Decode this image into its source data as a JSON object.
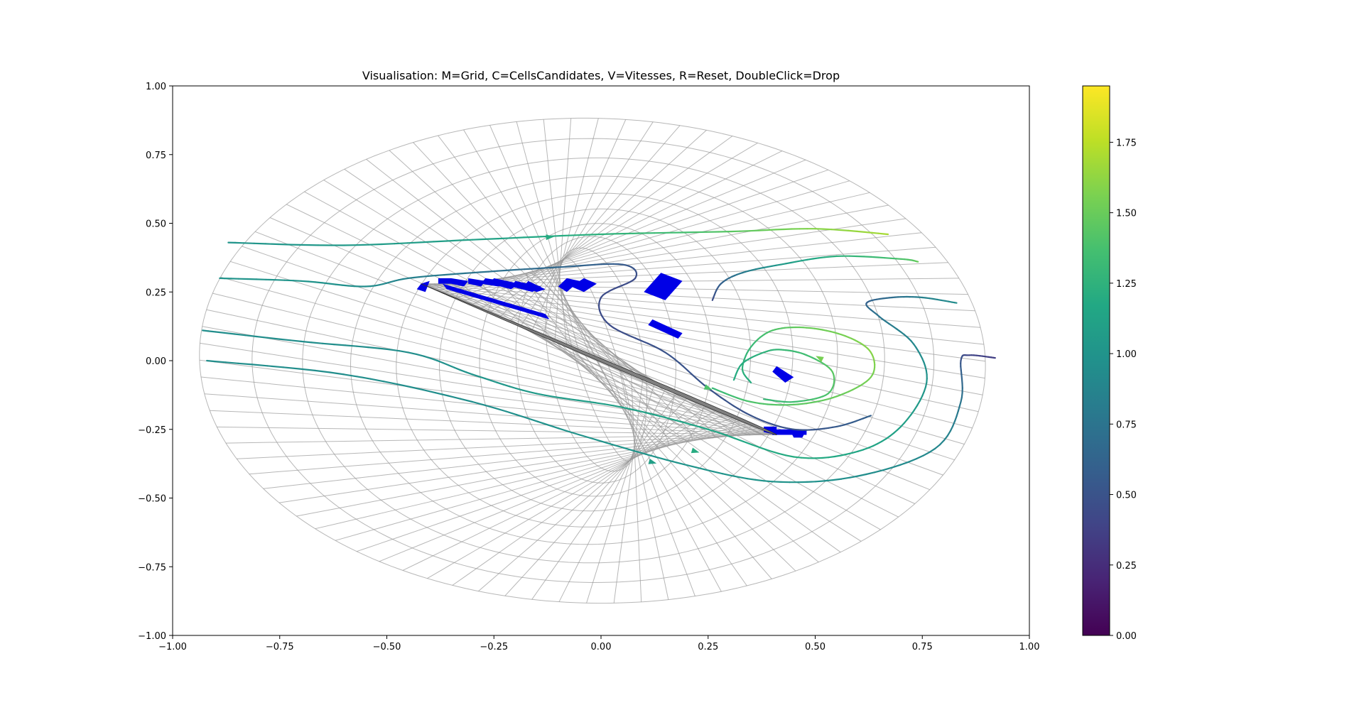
{
  "chart_data": {
    "type": "line",
    "title": "Visualisation: M=Grid, C=CellsCandidates, V=Vitesses, R=Reset, DoubleClick=Drop",
    "xlim": [
      -1.0,
      1.0
    ],
    "ylim": [
      -1.0,
      1.0
    ],
    "xticks": [
      "−1.00",
      "−0.75",
      "−0.50",
      "−0.25",
      "0.00",
      "0.25",
      "0.50",
      "0.75",
      "1.00"
    ],
    "yticks": [
      "1.00",
      "0.75",
      "0.50",
      "0.25",
      "0.00",
      "−0.25",
      "−0.50",
      "−0.75",
      "−1.00"
    ],
    "colorbar": {
      "colormap": "viridis",
      "range": [
        0.0,
        1.95
      ],
      "ticks": [
        "0.00",
        "0.25",
        "0.50",
        "0.75",
        "1.00",
        "1.25",
        "1.50",
        "1.75"
      ]
    },
    "grid": {
      "type": "O-mesh ellipse",
      "center": [
        -0.02,
        0.0
      ],
      "outer_semi_axes": [
        0.92,
        0.88
      ],
      "rotation_deg": -15,
      "radial_lines": 90,
      "rings": 18,
      "color": "#999999"
    },
    "airfoil": {
      "leading_edge": [
        -0.42,
        0.28
      ],
      "trailing_edge": [
        0.41,
        -0.27
      ],
      "fill": "#808080"
    },
    "candidate_cells_color": "#0000e6",
    "candidate_cells": [
      [
        [
          -0.42,
          0.28
        ],
        [
          -0.4,
          0.29
        ],
        [
          -0.41,
          0.25
        ],
        [
          -0.43,
          0.26
        ]
      ],
      [
        [
          -0.38,
          0.3
        ],
        [
          -0.35,
          0.3
        ],
        [
          -0.35,
          0.28
        ],
        [
          -0.38,
          0.28
        ]
      ],
      [
        [
          -0.35,
          0.3
        ],
        [
          -0.31,
          0.29
        ],
        [
          -0.32,
          0.27
        ],
        [
          -0.35,
          0.28
        ]
      ],
      [
        [
          -0.31,
          0.3
        ],
        [
          -0.27,
          0.29
        ],
        [
          -0.28,
          0.27
        ],
        [
          -0.31,
          0.28
        ]
      ],
      [
        [
          -0.27,
          0.3
        ],
        [
          -0.23,
          0.29
        ],
        [
          -0.24,
          0.27
        ],
        [
          -0.28,
          0.28
        ]
      ],
      [
        [
          -0.25,
          0.3
        ],
        [
          -0.19,
          0.28
        ],
        [
          -0.21,
          0.26
        ],
        [
          -0.26,
          0.28
        ]
      ],
      [
        [
          -0.2,
          0.29
        ],
        [
          -0.14,
          0.27
        ],
        [
          -0.16,
          0.25
        ],
        [
          -0.21,
          0.27
        ]
      ],
      [
        [
          -0.17,
          0.29
        ],
        [
          -0.13,
          0.26
        ],
        [
          -0.15,
          0.25
        ],
        [
          -0.18,
          0.27
        ]
      ],
      [
        [
          -0.08,
          0.3
        ],
        [
          -0.05,
          0.29
        ],
        [
          -0.08,
          0.25
        ],
        [
          -0.1,
          0.27
        ]
      ],
      [
        [
          -0.04,
          0.3
        ],
        [
          -0.01,
          0.28
        ],
        [
          -0.04,
          0.25
        ],
        [
          -0.07,
          0.27
        ]
      ],
      [
        [
          0.14,
          0.32
        ],
        [
          0.19,
          0.29
        ],
        [
          0.15,
          0.22
        ],
        [
          0.1,
          0.25
        ]
      ],
      [
        [
          0.12,
          0.15
        ],
        [
          0.19,
          0.1
        ],
        [
          0.18,
          0.08
        ],
        [
          0.11,
          0.13
        ]
      ],
      [
        [
          0.41,
          -0.02
        ],
        [
          0.45,
          -0.06
        ],
        [
          0.43,
          -0.08
        ],
        [
          0.4,
          -0.04
        ]
      ],
      [
        [
          0.4,
          -0.25
        ],
        [
          0.48,
          -0.25
        ],
        [
          0.48,
          -0.27
        ],
        [
          0.4,
          -0.27
        ]
      ],
      [
        [
          0.44,
          -0.25
        ],
        [
          0.48,
          -0.25
        ],
        [
          0.47,
          -0.28
        ],
        [
          0.45,
          -0.28
        ]
      ],
      [
        [
          -0.37,
          0.28
        ],
        [
          -0.13,
          0.17
        ],
        [
          -0.12,
          0.15
        ],
        [
          -0.36,
          0.26
        ]
      ],
      [
        [
          0.38,
          -0.24
        ],
        [
          0.41,
          -0.24
        ],
        [
          0.41,
          -0.27
        ],
        [
          0.38,
          -0.26
        ]
      ]
    ],
    "streamlines": [
      {
        "points": [
          [
            -0.87,
            0.43
          ],
          [
            -0.6,
            0.42
          ],
          [
            -0.3,
            0.44
          ],
          [
            0.0,
            0.46
          ],
          [
            0.3,
            0.47
          ],
          [
            0.5,
            0.48
          ],
          [
            0.67,
            0.46
          ]
        ],
        "speed": [
          1.0,
          1.05,
          1.1,
          1.25,
          1.45,
          1.6,
          1.7
        ],
        "arrow": [
          -0.12,
          0.45
        ]
      },
      {
        "points": [
          [
            -0.89,
            0.3
          ],
          [
            -0.7,
            0.29
          ],
          [
            -0.55,
            0.27
          ],
          [
            -0.45,
            0.3
          ],
          [
            -0.3,
            0.32
          ],
          [
            -0.1,
            0.34
          ],
          [
            0.05,
            0.35
          ],
          [
            0.08,
            0.3
          ],
          [
            0.0,
            0.23
          ],
          [
            0.02,
            0.13
          ],
          [
            0.15,
            0.03
          ],
          [
            0.25,
            -0.1
          ],
          [
            0.35,
            -0.2
          ],
          [
            0.45,
            -0.25
          ],
          [
            0.55,
            -0.24
          ],
          [
            0.63,
            -0.2
          ]
        ],
        "speed": [
          1.0,
          1.0,
          0.95,
          0.85,
          0.75,
          0.65,
          0.55,
          0.45,
          0.45,
          0.45,
          0.5,
          0.5,
          0.5,
          0.5,
          0.55,
          0.6
        ]
      },
      {
        "points": [
          [
            -0.93,
            0.11
          ],
          [
            -0.7,
            0.07
          ],
          [
            -0.45,
            0.03
          ],
          [
            -0.3,
            -0.05
          ],
          [
            -0.15,
            -0.12
          ],
          [
            0.05,
            -0.17
          ],
          [
            0.25,
            -0.25
          ],
          [
            0.45,
            -0.35
          ],
          [
            0.6,
            -0.33
          ],
          [
            0.7,
            -0.24
          ],
          [
            0.76,
            -0.08
          ],
          [
            0.73,
            0.06
          ],
          [
            0.65,
            0.16
          ],
          [
            0.62,
            0.21
          ],
          [
            0.68,
            0.23
          ],
          [
            0.75,
            0.23
          ],
          [
            0.83,
            0.21
          ]
        ],
        "speed": [
          0.95,
          0.95,
          0.95,
          1.0,
          1.05,
          1.1,
          1.15,
          1.2,
          1.15,
          1.1,
          1.0,
          0.9,
          0.75,
          0.6,
          0.7,
          0.85,
          0.95
        ],
        "arrow": [
          0.22,
          -0.33
        ]
      },
      {
        "points": [
          [
            -0.92,
            0.0
          ],
          [
            -0.6,
            -0.05
          ],
          [
            -0.3,
            -0.15
          ],
          [
            -0.05,
            -0.27
          ],
          [
            0.2,
            -0.38
          ],
          [
            0.4,
            -0.44
          ],
          [
            0.6,
            -0.42
          ],
          [
            0.78,
            -0.32
          ],
          [
            0.84,
            -0.15
          ],
          [
            0.84,
            0.0
          ],
          [
            0.86,
            0.02
          ],
          [
            0.92,
            0.01
          ]
        ],
        "speed": [
          0.95,
          0.95,
          0.95,
          1.0,
          1.0,
          1.0,
          0.95,
          0.9,
          0.75,
          0.5,
          0.4,
          0.35
        ],
        "arrow": [
          0.12,
          -0.37
        ]
      },
      {
        "points": [
          [
            0.26,
            -0.1
          ],
          [
            0.35,
            -0.15
          ],
          [
            0.45,
            -0.16
          ],
          [
            0.55,
            -0.13
          ],
          [
            0.63,
            -0.06
          ],
          [
            0.63,
            0.03
          ],
          [
            0.57,
            0.09
          ],
          [
            0.48,
            0.12
          ],
          [
            0.4,
            0.11
          ],
          [
            0.35,
            0.05
          ],
          [
            0.33,
            -0.03
          ],
          [
            0.35,
            -0.08
          ]
        ],
        "speed": [
          1.3,
          1.4,
          1.45,
          1.5,
          1.55,
          1.6,
          1.55,
          1.5,
          1.4,
          1.3,
          1.25,
          1.2
        ],
        "arrow": [
          0.25,
          -0.1
        ]
      },
      {
        "points": [
          [
            0.38,
            -0.14
          ],
          [
            0.45,
            -0.15
          ],
          [
            0.53,
            -0.12
          ],
          [
            0.54,
            -0.04
          ],
          [
            0.48,
            0.02
          ],
          [
            0.42,
            0.04
          ],
          [
            0.38,
            0.03
          ],
          [
            0.33,
            -0.01
          ],
          [
            0.31,
            -0.07
          ]
        ],
        "speed": [
          1.3,
          1.35,
          1.4,
          1.45,
          1.35,
          1.3,
          1.25,
          1.2,
          1.2
        ],
        "arrow": [
          0.51,
          0.01
        ]
      },
      {
        "points": [
          [
            0.26,
            0.22
          ],
          [
            0.28,
            0.28
          ],
          [
            0.33,
            0.32
          ],
          [
            0.42,
            0.35
          ],
          [
            0.55,
            0.38
          ],
          [
            0.7,
            0.37
          ],
          [
            0.74,
            0.36
          ]
        ],
        "speed": [
          0.45,
          0.6,
          0.8,
          1.05,
          1.25,
          1.4,
          1.5
        ]
      }
    ]
  }
}
